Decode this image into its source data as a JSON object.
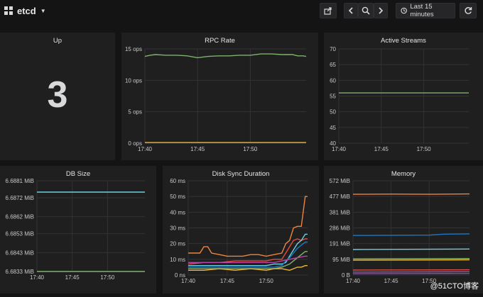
{
  "header": {
    "title": "etcd",
    "time_range_label": "Last 15 minutes",
    "icons": {
      "share": "share-icon",
      "back": "chevron-left-icon",
      "zoom": "zoom-out-icon",
      "forward": "chevron-right-icon",
      "clock": "clock-icon",
      "refresh": "refresh-icon"
    }
  },
  "panels": {
    "up": {
      "title": "Up",
      "value": "3"
    },
    "rpc_rate": {
      "title": "RPC Rate"
    },
    "active_streams": {
      "title": "Active Streams"
    },
    "db_size": {
      "title": "DB Size"
    },
    "disk_sync": {
      "title": "Disk Sync Duration"
    },
    "memory": {
      "title": "Memory"
    }
  },
  "watermark": "@51CTO博客",
  "chart_data": [
    {
      "id": "rpc_rate",
      "type": "line",
      "title": "RPC Rate",
      "x_ticks": [
        "17:40",
        "17:45",
        "17:50"
      ],
      "x_tick_positions": [
        0,
        5,
        10
      ],
      "xlim": [
        0,
        15.3
      ],
      "y_ticks": [
        "0 ops",
        "5 ops",
        "10 ops",
        "15 ops"
      ],
      "y_tick_values": [
        0,
        5,
        10,
        15
      ],
      "ylim": [
        0,
        15
      ],
      "series": [
        {
          "color": "#7eb26d",
          "x": [
            0,
            0.5,
            1,
            2,
            3,
            4,
            5,
            6,
            7,
            8,
            9,
            10,
            11,
            12,
            13,
            14,
            14.5,
            15,
            15.3
          ],
          "y": [
            13.8,
            14.0,
            14.1,
            14.0,
            14.0,
            13.9,
            13.6,
            13.8,
            13.9,
            13.9,
            14.0,
            14.0,
            14.2,
            14.2,
            14.1,
            14.1,
            13.9,
            13.9,
            13.8
          ]
        },
        {
          "color": "#eab839",
          "x": [
            0,
            15.3
          ],
          "y": [
            0.1,
            0.1
          ]
        }
      ],
      "grid": true
    },
    {
      "id": "active_streams",
      "type": "line",
      "title": "Active Streams",
      "x_ticks": [
        "17:40",
        "17:45",
        "17:50"
      ],
      "x_tick_positions": [
        0,
        5,
        10
      ],
      "xlim": [
        0,
        15.3
      ],
      "y_ticks": [
        "40",
        "45",
        "50",
        "55",
        "60",
        "65",
        "70"
      ],
      "y_tick_values": [
        40,
        45,
        50,
        55,
        60,
        65,
        70
      ],
      "ylim": [
        40,
        70
      ],
      "series": [
        {
          "color": "#7eb26d",
          "x": [
            0,
            15.3
          ],
          "y": [
            56,
            56
          ]
        }
      ],
      "grid": true
    },
    {
      "id": "db_size",
      "type": "line",
      "title": "DB Size",
      "x_ticks": [
        "17:40",
        "17:45",
        "17:50"
      ],
      "x_tick_positions": [
        0,
        5,
        10
      ],
      "xlim": [
        0,
        15.3
      ],
      "y_ticks": [
        "6.6833 MiB",
        "6.6843 MiB",
        "6.6853 MiB",
        "6.6862 MiB",
        "6.6872 MiB",
        "6.6881 MiB"
      ],
      "y_tick_values": [
        6.6833,
        6.6843,
        6.6853,
        6.6862,
        6.6872,
        6.6881
      ],
      "ylim": [
        6.6833,
        6.6881
      ],
      "series": [
        {
          "color": "#6ed0e0",
          "x": [
            0,
            15.3
          ],
          "y": [
            6.6875,
            6.6875
          ]
        },
        {
          "color": "#7eb26d",
          "x": [
            0,
            15.3
          ],
          "y": [
            6.6833,
            6.6833
          ]
        }
      ],
      "grid": true
    },
    {
      "id": "disk_sync",
      "type": "line",
      "title": "Disk Sync Duration",
      "x_ticks": [
        "17:40",
        "17:45",
        "17:50"
      ],
      "x_tick_positions": [
        0,
        5,
        10
      ],
      "xlim": [
        0,
        15.3
      ],
      "y_ticks": [
        "0 ns",
        "10 ms",
        "20 ms",
        "30 ms",
        "40 ms",
        "50 ms",
        "60 ms"
      ],
      "y_tick_values": [
        0,
        10,
        20,
        30,
        40,
        50,
        60
      ],
      "ylim": [
        0,
        60
      ],
      "series": [
        {
          "color": "#ef843c",
          "x": [
            0,
            1.5,
            2,
            2.5,
            3,
            4,
            5,
            6,
            7,
            8,
            9,
            10,
            11,
            12,
            12.5,
            13,
            13.5,
            14,
            14.5,
            15,
            15.3
          ],
          "y": [
            14,
            14,
            18,
            18,
            14,
            13,
            12,
            12,
            12,
            13,
            13,
            12,
            13,
            14,
            20,
            22,
            30,
            31,
            31,
            50,
            50
          ]
        },
        {
          "color": "#e24d42",
          "x": [
            0,
            2,
            4,
            6,
            8,
            10,
            11,
            12,
            12.5,
            13,
            13.5,
            14,
            14.5,
            15,
            15.3
          ],
          "y": [
            7,
            8,
            8,
            9,
            9,
            9,
            10,
            10,
            14,
            18,
            22,
            23,
            22,
            23,
            23
          ]
        },
        {
          "color": "#6ed0e0",
          "x": [
            0,
            2,
            4,
            6,
            8,
            10,
            11,
            12,
            12.5,
            13,
            13.5,
            14,
            14.5,
            15,
            15.3
          ],
          "y": [
            6,
            6,
            6,
            6,
            6,
            6,
            7,
            7,
            8,
            12,
            16,
            20,
            22,
            26,
            26
          ]
        },
        {
          "color": "#1f78c1",
          "x": [
            0,
            3,
            6,
            9,
            11,
            12,
            12.5,
            13,
            13.5,
            14,
            14.5,
            15,
            15.3
          ],
          "y": [
            5,
            5,
            5,
            5,
            5,
            6,
            9,
            11,
            14,
            17,
            19,
            21,
            21
          ]
        },
        {
          "color": "#7eb26d",
          "x": [
            0,
            4,
            8,
            11,
            12,
            13,
            13.5,
            14,
            14.5,
            15,
            15.3
          ],
          "y": [
            4,
            4,
            4,
            4,
            5,
            7,
            9,
            11,
            13,
            15,
            15
          ]
        },
        {
          "color": "#ba43a9",
          "x": [
            0,
            4,
            8,
            11,
            12,
            13,
            14,
            15,
            15.3
          ],
          "y": [
            8,
            8,
            8,
            8,
            9,
            10,
            11,
            12,
            12
          ]
        },
        {
          "color": "#eab839",
          "x": [
            0,
            2,
            4,
            6,
            8,
            10,
            11,
            12,
            13,
            13.5,
            14,
            14.5,
            15,
            15.3
          ],
          "y": [
            3,
            3,
            4,
            3,
            4,
            3,
            4,
            4,
            3,
            4,
            5,
            5,
            6,
            6
          ]
        }
      ],
      "grid": true
    },
    {
      "id": "memory",
      "type": "line",
      "title": "Memory",
      "x_ticks": [
        "17:40",
        "17:45",
        "17:50"
      ],
      "x_tick_positions": [
        0,
        5,
        10
      ],
      "xlim": [
        0,
        15.3
      ],
      "y_ticks": [
        "0 B",
        "95 MiB",
        "191 MiB",
        "286 MiB",
        "381 MiB",
        "477 MiB",
        "572 MiB"
      ],
      "y_tick_values": [
        0,
        95,
        191,
        286,
        381,
        477,
        572
      ],
      "ylim": [
        0,
        572
      ],
      "series": [
        {
          "color": "#ef843c",
          "x": [
            0,
            5,
            10,
            15.3
          ],
          "y": [
            490,
            491,
            490,
            492
          ]
        },
        {
          "color": "#1f78c1",
          "x": [
            0,
            10,
            12,
            15.3
          ],
          "y": [
            240,
            242,
            248,
            250
          ]
        },
        {
          "color": "#6ed0e0",
          "x": [
            0,
            15.3
          ],
          "y": [
            155,
            158
          ]
        },
        {
          "color": "#eab839",
          "x": [
            0,
            15.3
          ],
          "y": [
            90,
            92
          ]
        },
        {
          "color": "#7eb26d",
          "x": [
            0,
            15.3
          ],
          "y": [
            98,
            100
          ]
        },
        {
          "color": "#e24d42",
          "x": [
            0,
            15.3
          ],
          "y": [
            30,
            32
          ]
        },
        {
          "color": "#ba43a9",
          "x": [
            0,
            15.3
          ],
          "y": [
            18,
            20
          ]
        },
        {
          "color": "#705da0",
          "x": [
            0,
            15.3
          ],
          "y": [
            8,
            10
          ]
        }
      ],
      "grid": true
    }
  ]
}
